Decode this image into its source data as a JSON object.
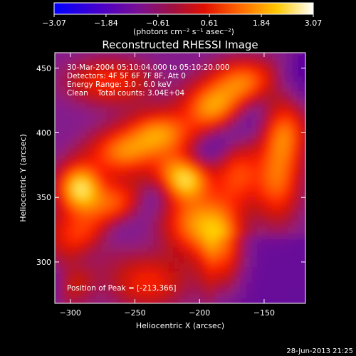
{
  "colorbar": {
    "ticks": [
      "-3.07",
      "-1.84",
      "-0.61",
      "0.61",
      "1.84",
      "3.07"
    ],
    "unit_label": "(photons cm⁻² s⁻¹ asec⁻²)",
    "min": -3.07,
    "max": 3.07
  },
  "chart_data": {
    "type": "heatmap",
    "title": "Reconstructed RHESSI Image",
    "xlabel": "Heliocentric X (arcsec)",
    "ylabel": "Heliocentric Y (arcsec)",
    "xlim": [
      -312,
      -118
    ],
    "ylim": [
      268,
      462
    ],
    "xticks": [
      -300,
      -250,
      -200,
      -150
    ],
    "yticks": [
      300,
      350,
      400,
      450
    ],
    "xtick_labels": [
      "−300",
      "−250",
      "−200",
      "−150"
    ],
    "ytick_labels": [
      "300",
      "350",
      "400",
      "450"
    ],
    "peak": [
      -213,
      366
    ],
    "colormap": [
      "#0000ff",
      "#5a00a0",
      "#8a1f8a",
      "#c01010",
      "#ff2000",
      "#ff7a00",
      "#ffd000",
      "#ffffff"
    ],
    "info": [
      "30-Mar-2004 05:10:04.000 to 05:10:20.000",
      "Detectors: 4F 5F 6F 7F 8F, Att 0",
      "Energy Range: 3.0 - 6.0 keV",
      "Clean    Total counts: 3.04E+04"
    ],
    "peak_text": "Position of Peak = [-213,366]"
  },
  "footer": {
    "date": "28-Jun-2013 21:25"
  }
}
